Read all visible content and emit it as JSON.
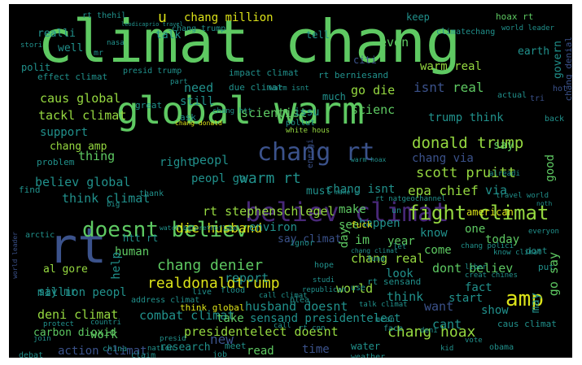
{
  "palette": {
    "background": "#000000",
    "green": "#5ec962",
    "lightgreen": "#95d840",
    "yellow": "#dce319",
    "teal": "#21918c",
    "blue": "#3b528b",
    "darkblue": "#2c728e",
    "purple": "#440154",
    "violet": "#482878"
  },
  "words": {
    "w01": "climat chang",
    "w02": "global warm",
    "w03": "rt",
    "w04": "believ climat",
    "w05": "chang rt",
    "w06": "amp",
    "w07": "doesnt believ",
    "w08": "fight climat",
    "w09": "donald trump",
    "w10": "realdonaldtrump",
    "w11": "warm rt",
    "w12": "chang denier",
    "w13": "chang hoax",
    "w14": "presidentelect doesnt",
    "w15": "husband doesnt",
    "w16": "sensand presidentelect",
    "w17": "combat climat",
    "w18": "deni climat",
    "w19": "scott pruitt",
    "w20": "epa chief",
    "w21": "rt stephenschlegel",
    "w22": "die husband",
    "w23": "think climat",
    "w24": "believ global",
    "w25": "million peopl",
    "w26": "tackl climat",
    "w27": "caus global",
    "w28": "scientist",
    "w29": "scienc",
    "w30": "go die",
    "w31": "warm real",
    "w32": "chang million",
    "w33": "trump think",
    "w34": "isnt",
    "w35": "real",
    "w36": "report",
    "w37": "chang real",
    "w38": "world",
    "w39": "dont believ",
    "w40": "say climat",
    "w41": "al gore",
    "w42": "carbon dioxid",
    "w43": "action climat",
    "w44": "research",
    "w45": "work",
    "w46": "new",
    "w47": "take",
    "w48": "read",
    "w49": "time",
    "w50": "cant",
    "w51": "start",
    "w52": "show",
    "w53": "want",
    "w54": "fact",
    "w55": "think",
    "w56": "look",
    "w57": "come",
    "w58": "know",
    "w59": "im",
    "w60": "happen",
    "w61": "make",
    "w62": "see",
    "w63": "fuck",
    "w64": "peopl",
    "w65": "peopl go",
    "w66": "right",
    "w67": "thing",
    "w68": "support",
    "w69": "chang amp",
    "w70": "need",
    "w71": "still",
    "w72": "effect climat",
    "w73": "realli",
    "w74": "well",
    "w75": "u",
    "w76": "talk",
    "w77": "even",
    "w78": "keep",
    "w79": "chang via",
    "w80": "say",
    "w81": "via",
    "w82": "year",
    "w83": "today",
    "w84": "american",
    "w85": "chang isnt",
    "w86": "one",
    "w87": "must",
    "w88": "day",
    "w89": "environ",
    "w90": "human",
    "w91": "help",
    "w92": "htt rt",
    "w93": "good",
    "w94": "go say",
    "w95": "may",
    "w96": "impact climat",
    "w97": "due climat",
    "w98": "issu",
    "w99": "much",
    "w100": "citi",
    "w101": "rt berniesand",
    "w102": "chang denial",
    "w103": "govern",
    "w104": "earth",
    "w105": "hoax rt",
    "w106": "world leader",
    "w107": "climatechang",
    "w108": "chang trump",
    "w109": "tell",
    "w110": "polit",
    "w111": "presid trump",
    "w112": "stori",
    "w113": "problem",
    "w114": "great",
    "w115": "ask",
    "w116": "chang htt",
    "w117": "pollut",
    "w118": "actual",
    "w119": "back",
    "w120": "tri",
    "w121": "find",
    "w122": "thank",
    "w123": "white hous",
    "w124": "energi",
    "w125": "mean",
    "w126": "rt sensand",
    "w127": "talk climat",
    "w128": "caus climat",
    "w129": "water",
    "w130": "weather",
    "w131": "obama",
    "w132": "meet",
    "w133": "job",
    "w134": "debat",
    "w135": "china",
    "w136": "claim",
    "w137": "think global",
    "w138": "address climat",
    "w139": "call climat",
    "w140": "flood",
    "w141": "live",
    "w142": "republican",
    "w143": "use",
    "w144": "studi",
    "w145": "plea",
    "w146": "call",
    "w147": "rt cnn",
    "w148": "face",
    "w149": "vote",
    "w150": "kid",
    "w151": "deni",
    "w152": "know climat",
    "w153": "dont",
    "w154": "put",
    "w155": "chang polici",
    "w156": "hope",
    "w157": "ignor",
    "w158": "fund",
    "w159": "arctic",
    "w160": "protect",
    "w161": "join",
    "w162": "nation",
    "w163": "presid",
    "w164": "watch beforetheflood",
    "w165": "chang donald",
    "w166": "warm isnt",
    "w167": "rt thehil",
    "w168": "leodicaprio travel",
    "w169": "nasa",
    "w170": "mr",
    "w171": "say mr",
    "w172": "part",
    "w173": "hot",
    "w174": "everyon",
    "w175": "noth",
    "w176": "travel world",
    "w177": "let",
    "w178": "liber",
    "w179": "creat chines",
    "w180": "countri",
    "w181": "big",
    "w182": "alreadi",
    "w183": "warm hoax",
    "w184": "un",
    "w185": "make u",
    "w186": "rt natgeochannel",
    "w187": "chang climat",
    "w188": "world leader"
  }
}
